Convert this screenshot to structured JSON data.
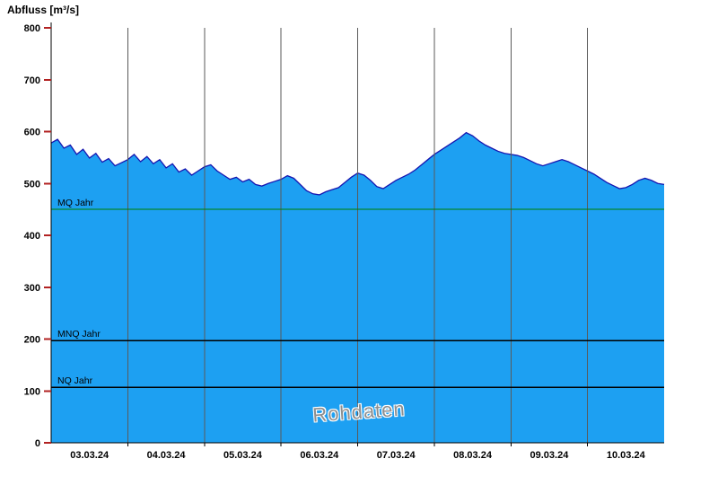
{
  "title": "Abfluss [m³/s]",
  "watermark": "Rohdaten",
  "colors": {
    "area_fill": "#1da0f2",
    "area_stroke": "#1515b0",
    "grid_line": "#5a5a5a",
    "axis_line": "#000000",
    "y_tick": "#b22222",
    "x_tick": "#000000",
    "mq_line": "#008000",
    "mnq_line": "#000000",
    "nq_line": "#000000",
    "watermark_text": "#8f8f8f"
  },
  "y_axis": {
    "min": 0,
    "max": 800,
    "tick_step": 100,
    "ticks": [
      0,
      100,
      200,
      300,
      400,
      500,
      600,
      700,
      800
    ]
  },
  "x_axis": {
    "labels": [
      "03.03.24",
      "04.03.24",
      "05.03.24",
      "06.03.24",
      "07.03.24",
      "08.03.24",
      "09.03.24",
      "10.03.24"
    ]
  },
  "reference_lines": [
    {
      "id": "mq",
      "label": "MQ Jahr",
      "value": 450,
      "color": "#008000"
    },
    {
      "id": "mnq",
      "label": "MNQ Jahr",
      "value": 197,
      "color": "#000000"
    },
    {
      "id": "nq",
      "label": "NQ Jahr",
      "value": 107,
      "color": "#000000"
    }
  ],
  "chart_data": {
    "type": "area",
    "title": "Abfluss [m³/s]",
    "xlabel": "",
    "ylabel": "Abfluss [m³/s]",
    "ylim": [
      0,
      800
    ],
    "grid": "vertical-daily",
    "legend": "none",
    "x_labels": [
      "03.03.24",
      "04.03.24",
      "05.03.24",
      "06.03.24",
      "07.03.24",
      "08.03.24",
      "09.03.24",
      "10.03.24"
    ],
    "series": [
      {
        "name": "Abfluss Rohdaten",
        "start": "03.03.24 00:00",
        "interval_hours": 2,
        "values": [
          578,
          585,
          568,
          574,
          556,
          566,
          549,
          558,
          541,
          548,
          534,
          540,
          546,
          556,
          542,
          552,
          538,
          546,
          530,
          538,
          522,
          528,
          516,
          524,
          532,
          536,
          524,
          516,
          508,
          512,
          503,
          508,
          498,
          495,
          500,
          504,
          508,
          515,
          510,
          498,
          486,
          480,
          478,
          484,
          488,
          492,
          502,
          512,
          520,
          516,
          506,
          494,
          490,
          498,
          506,
          512,
          518,
          526,
          536,
          546,
          556,
          564,
          572,
          580,
          588,
          598,
          592,
          582,
          574,
          568,
          562,
          558,
          556,
          554,
          550,
          544,
          538,
          534,
          538,
          542,
          546,
          542,
          536,
          530,
          524,
          518,
          510,
          502,
          496,
          490,
          492,
          498,
          506,
          510,
          506,
          500,
          498
        ]
      }
    ],
    "annotations": [
      "Rohdaten"
    ],
    "reference_lines": [
      {
        "label": "MQ Jahr",
        "value": 450
      },
      {
        "label": "MNQ Jahr",
        "value": 197
      },
      {
        "label": "NQ Jahr",
        "value": 107
      }
    ]
  }
}
